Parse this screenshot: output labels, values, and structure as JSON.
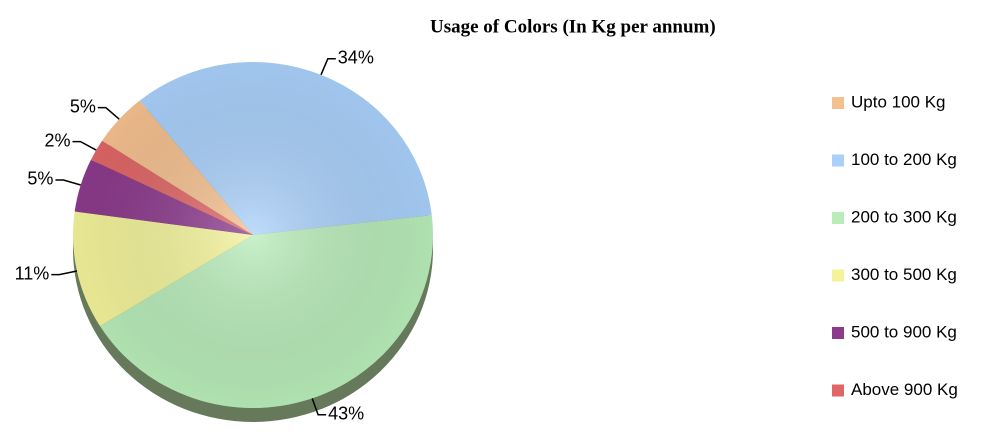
{
  "chart_data": {
    "type": "pie",
    "title": "Usage of Colors (In Kg per annum)",
    "categories": [
      "Upto 100 Kg",
      "100 to 200 Kg",
      "200 to 300 Kg",
      "300 to 500 Kg",
      "500 to 900 Kg",
      "Above 900 Kg"
    ],
    "values": [
      5,
      34,
      43,
      11,
      5,
      2
    ],
    "value_labels": [
      "5%",
      "34%",
      "43%",
      "11%",
      "5%",
      "2%"
    ],
    "colors": [
      "#f5c08f",
      "#a9d0fa",
      "#b8ecb9",
      "#f3f39a",
      "#8c3a8c",
      "#e06666"
    ],
    "legend": "right"
  }
}
